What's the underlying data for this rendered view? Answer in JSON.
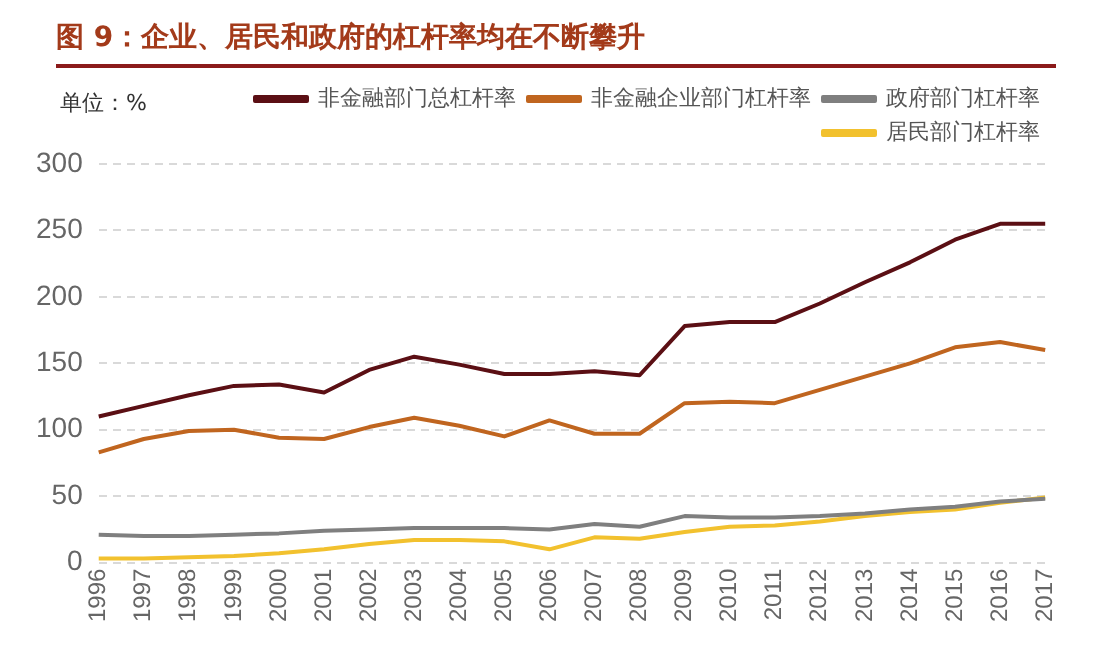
{
  "chart_data": {
    "type": "line",
    "title": "图 9：企业、居民和政府的杠杆率均在不断攀升",
    "ylabel": "单位：%",
    "categories": [
      "1996",
      "1997",
      "1998",
      "1999",
      "2000",
      "2001",
      "2002",
      "2003",
      "2004",
      "2005",
      "2006",
      "2007",
      "2008",
      "2009",
      "2010",
      "2011",
      "2012",
      "2013",
      "2014",
      "2015",
      "2016",
      "2017"
    ],
    "series": [
      {
        "name": "非金融部门总杠杆率",
        "color": "#5b0f14",
        "values": [
          110,
          118,
          126,
          133,
          134,
          128,
          145,
          155,
          149,
          142,
          142,
          144,
          141,
          178,
          181,
          181,
          195,
          211,
          226,
          243,
          255,
          255
        ]
      },
      {
        "name": "非金融企业部门杠杆率",
        "color": "#c0651f",
        "values": [
          83,
          93,
          99,
          100,
          94,
          93,
          102,
          109,
          103,
          95,
          107,
          97,
          97,
          120,
          121,
          120,
          130,
          140,
          150,
          162,
          166,
          160
        ]
      },
      {
        "name": "政府部门杠杆率",
        "color": "#7f7f7f",
        "values": [
          21,
          20,
          20,
          21,
          22,
          24,
          25,
          26,
          26,
          26,
          25,
          29,
          27,
          35,
          34,
          34,
          35,
          37,
          40,
          42,
          46,
          48
        ]
      },
      {
        "name": "居民部门杠杆率",
        "color": "#f2c12e",
        "values": [
          3,
          3,
          4,
          5,
          7,
          10,
          14,
          17,
          17,
          16,
          10,
          19,
          18,
          23,
          27,
          28,
          31,
          35,
          38,
          40,
          45,
          49
        ]
      }
    ],
    "ylim": [
      0,
      300
    ],
    "yticks": [
      0,
      50,
      100,
      150,
      200,
      250,
      300
    ],
    "grid": "y",
    "legend": "top",
    "marker": "none",
    "line_style": "solid"
  }
}
